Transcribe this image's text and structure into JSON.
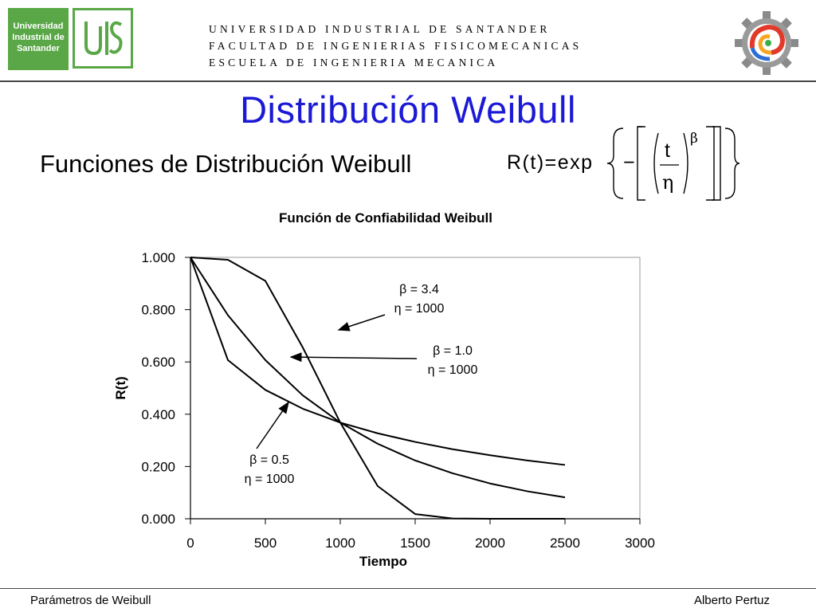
{
  "header": {
    "logo_left_lines": [
      "Universidad",
      "Industrial de",
      "Santander"
    ],
    "logo_right_name": "UIS",
    "logo_gear_name": "mechanical-engineering-gear",
    "institution_lines": [
      "UNIVERSIDAD INDUSTRIAL DE SANTANDER",
      "FACULTAD DE  INGENIERIAS FISICOMECANICAS",
      "ESCUELA DE INGENIERIA MECANICA"
    ]
  },
  "slide": {
    "title": "Distribución Weibull",
    "subtitle": "Funciones de Distribución Weibull",
    "formula": {
      "lhs": "R(t)=exp",
      "minus": "−",
      "numerator": "t",
      "denominator": "η",
      "exponent": "β"
    },
    "title_color": "#1b19d6"
  },
  "chart_data": {
    "type": "line",
    "title": "Función de Confiabilidad Weibull",
    "xlabel": "Tiempo",
    "ylabel": "R(t)",
    "xlim": [
      0,
      3000
    ],
    "ylim": [
      0,
      1
    ],
    "x_ticks": [
      "0",
      "500",
      "1000",
      "1500",
      "2000",
      "2500",
      "3000"
    ],
    "x_tick_values": [
      0,
      500,
      1000,
      1500,
      2000,
      2500,
      3000
    ],
    "y_ticks": [
      "0.000",
      "0.200",
      "0.400",
      "0.600",
      "0.800",
      "1.000"
    ],
    "y_tick_values": [
      0,
      0.2,
      0.4,
      0.6,
      0.8,
      1.0
    ],
    "grid": false,
    "x": [
      0,
      250,
      500,
      750,
      1000,
      1250,
      1500,
      1750,
      2000,
      2250,
      2500
    ],
    "series": [
      {
        "name": "β = 0.5, η = 1000",
        "values": [
          1.0,
          0.607,
          0.493,
          0.421,
          0.368,
          0.327,
          0.294,
          0.266,
          0.243,
          0.223,
          0.206
        ]
      },
      {
        "name": "β = 1.0, η = 1000",
        "values": [
          1.0,
          0.779,
          0.607,
          0.472,
          0.368,
          0.287,
          0.223,
          0.174,
          0.135,
          0.105,
          0.082
        ]
      },
      {
        "name": "β = 3.4, η = 1000",
        "values": [
          1.0,
          0.991,
          0.91,
          0.655,
          0.368,
          0.125,
          0.018,
          0.001,
          0.0,
          0.0,
          0.0
        ]
      }
    ],
    "annotations": [
      {
        "line1": "β = 3.4",
        "line2": "η = 1000"
      },
      {
        "line1": "β = 1.0",
        "line2": "η = 1000"
      },
      {
        "line1": "β = 0.5",
        "line2": "η = 1000"
      }
    ]
  },
  "footer": {
    "left": "Parámetros de Weibull",
    "right": "Alberto Pertuz"
  }
}
